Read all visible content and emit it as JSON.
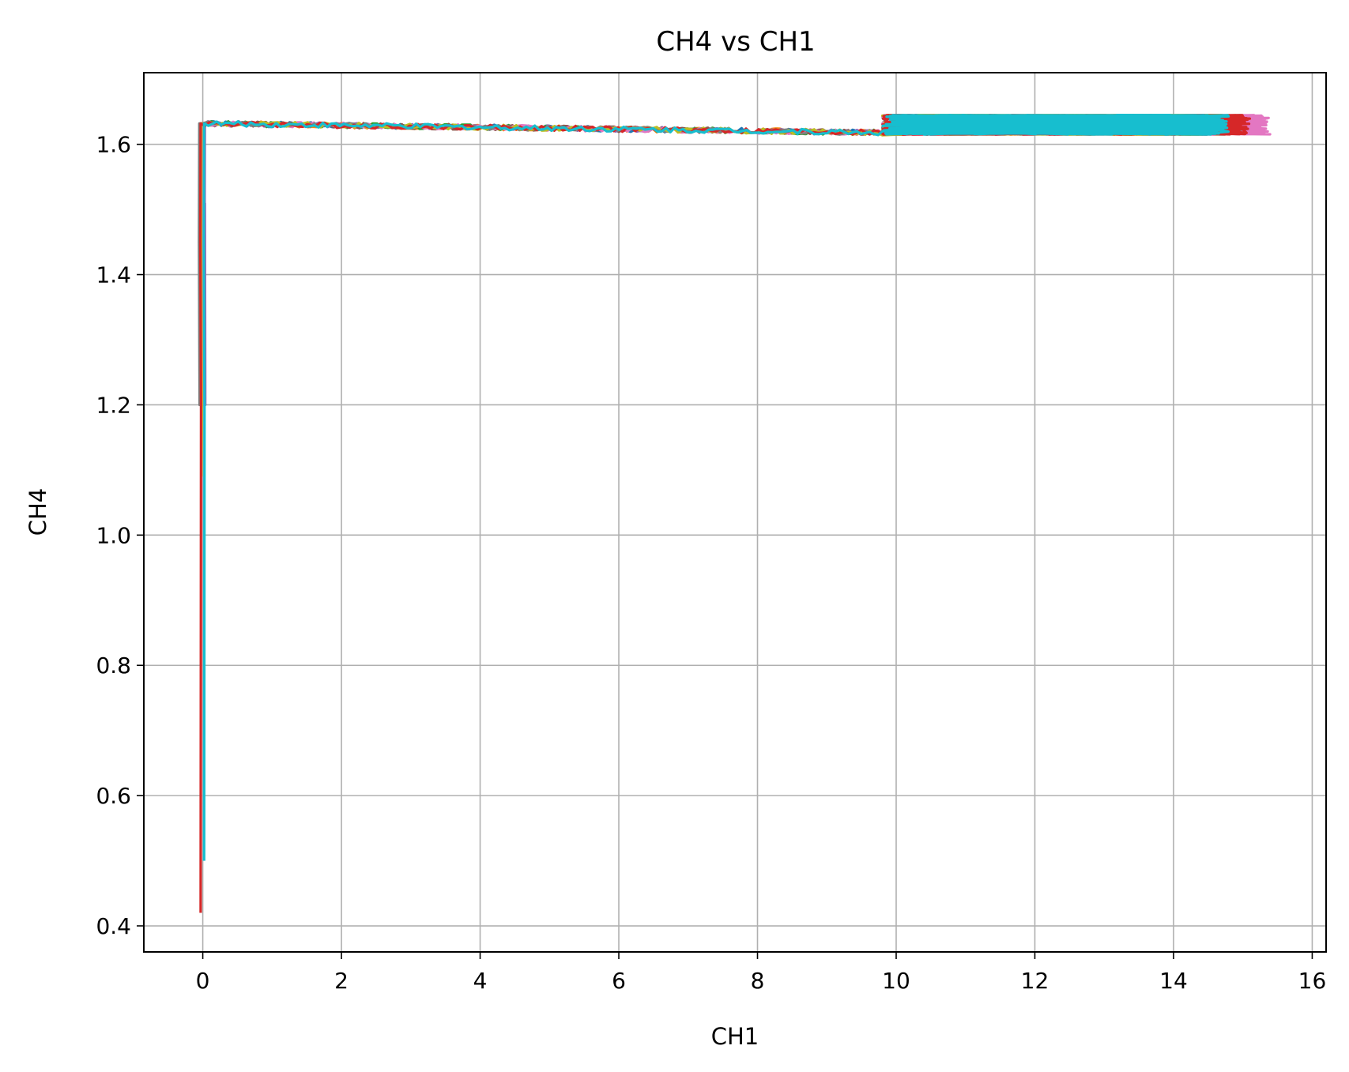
{
  "chart_data": {
    "type": "line",
    "title": "CH4 vs CH1",
    "xlabel": "CH1",
    "ylabel": "CH4",
    "xlim": [
      -0.85,
      16.2
    ],
    "ylim": [
      0.36,
      1.71
    ],
    "xticks": [
      0,
      2,
      4,
      6,
      8,
      10,
      12,
      14,
      16
    ],
    "yticks": [
      0.4,
      0.6,
      0.8,
      1.0,
      1.2,
      1.4,
      1.6
    ],
    "xtick_labels": [
      "0",
      "2",
      "4",
      "6",
      "8",
      "10",
      "12",
      "14",
      "16"
    ],
    "ytick_labels": [
      "0.4",
      "0.6",
      "0.8",
      "1.0",
      "1.2",
      "1.4",
      "1.6"
    ],
    "grid": true,
    "legend": "none",
    "series": [
      {
        "color": "#1f77b4",
        "vert_x": -0.04,
        "vert_ymin": 1.48,
        "trail_end": 14.8,
        "seed": 1
      },
      {
        "color": "#ff7f0e",
        "vert_x": -0.02,
        "vert_ymin": 1.52,
        "trail_end": 14.9,
        "seed": 2
      },
      {
        "color": "#2ca02c",
        "vert_x": 0.0,
        "vert_ymin": 1.5,
        "trail_end": 14.7,
        "seed": 3
      },
      {
        "color": "#d62728",
        "vert_x": -0.03,
        "vert_ymin": 0.42,
        "trail_end": 15.1,
        "seed": 4
      },
      {
        "color": "#9467bd",
        "vert_x": 0.03,
        "vert_ymin": 1.51,
        "trail_end": 14.6,
        "seed": 5
      },
      {
        "color": "#8c564b",
        "vert_x": -0.01,
        "vert_ymin": 1.55,
        "trail_end": 14.8,
        "seed": 6
      },
      {
        "color": "#e377c2",
        "vert_x": 0.01,
        "vert_ymin": 1.5,
        "trail_end": 15.4,
        "seed": 7
      },
      {
        "color": "#7f7f7f",
        "vert_x": -0.05,
        "vert_ymin": 1.34,
        "trail_end": 15.0,
        "seed": 8
      },
      {
        "color": "#bcbd22",
        "vert_x": -0.02,
        "vert_ymin": 1.09,
        "trail_end": 14.9,
        "seed": 9
      },
      {
        "color": "#17becf",
        "vert_x": 0.02,
        "vert_ymin": 0.5,
        "trail_end": 14.8,
        "seed": 10
      }
    ],
    "cluster_x": [
      9.8,
      15.4
    ],
    "cluster_y": [
      1.615,
      1.645
    ],
    "trail_y_start": 1.632,
    "trail_y_end": 1.618
  }
}
